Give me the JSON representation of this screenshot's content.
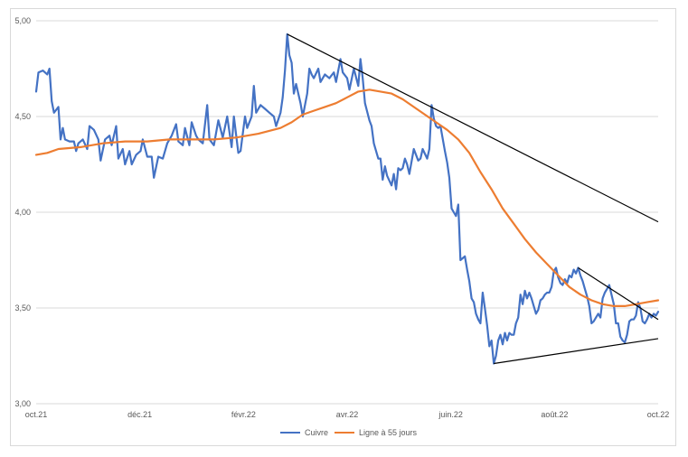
{
  "chart_data": {
    "type": "line",
    "title": "",
    "xlabel": "",
    "ylabel": "",
    "ylim": [
      3.0,
      5.0
    ],
    "y_ticks": [
      "5,00",
      "4,50",
      "4,00",
      "3,50",
      "3,00"
    ],
    "x_ticks": [
      "oct.21",
      "déc.21",
      "févr.22",
      "avr.22",
      "juin.22",
      "août.22",
      "oct.22"
    ],
    "grid": "horizontal",
    "legend_position": "bottom",
    "series": [
      {
        "name": "Cuivre",
        "color": "#4472c4",
        "points": [
          [
            0,
            4.63
          ],
          [
            1,
            4.73
          ],
          [
            3,
            4.74
          ],
          [
            5,
            4.72
          ],
          [
            6,
            4.75
          ],
          [
            7,
            4.58
          ],
          [
            8,
            4.52
          ],
          [
            10,
            4.55
          ],
          [
            11,
            4.38
          ],
          [
            12,
            4.44
          ],
          [
            13,
            4.38
          ],
          [
            15,
            4.37
          ],
          [
            17,
            4.37
          ],
          [
            18,
            4.32
          ],
          [
            19,
            4.36
          ],
          [
            21,
            4.38
          ],
          [
            23,
            4.33
          ],
          [
            24,
            4.45
          ],
          [
            26,
            4.43
          ],
          [
            28,
            4.38
          ],
          [
            29,
            4.27
          ],
          [
            31,
            4.38
          ],
          [
            33,
            4.4
          ],
          [
            34,
            4.35
          ],
          [
            36,
            4.45
          ],
          [
            37,
            4.28
          ],
          [
            39,
            4.33
          ],
          [
            40,
            4.25
          ],
          [
            42,
            4.32
          ],
          [
            43,
            4.25
          ],
          [
            45,
            4.3
          ],
          [
            47,
            4.32
          ],
          [
            48,
            4.38
          ],
          [
            50,
            4.29
          ],
          [
            52,
            4.29
          ],
          [
            53,
            4.18
          ],
          [
            55,
            4.29
          ],
          [
            57,
            4.28
          ],
          [
            59,
            4.36
          ],
          [
            61,
            4.4
          ],
          [
            63,
            4.46
          ],
          [
            64,
            4.37
          ],
          [
            66,
            4.35
          ],
          [
            67,
            4.44
          ],
          [
            69,
            4.35
          ],
          [
            70,
            4.47
          ],
          [
            72,
            4.4
          ],
          [
            73,
            4.38
          ],
          [
            75,
            4.36
          ],
          [
            77,
            4.56
          ],
          [
            78,
            4.38
          ],
          [
            80,
            4.35
          ],
          [
            82,
            4.48
          ],
          [
            84,
            4.39
          ],
          [
            86,
            4.5
          ],
          [
            88,
            4.34
          ],
          [
            89,
            4.5
          ],
          [
            91,
            4.31
          ],
          [
            92,
            4.32
          ],
          [
            94,
            4.5
          ],
          [
            95,
            4.44
          ],
          [
            97,
            4.5
          ],
          [
            98,
            4.66
          ],
          [
            99,
            4.52
          ],
          [
            101,
            4.56
          ],
          [
            103,
            4.54
          ],
          [
            105,
            4.52
          ],
          [
            107,
            4.5
          ],
          [
            108,
            4.45
          ],
          [
            110,
            4.52
          ],
          [
            111,
            4.6
          ],
          [
            112,
            4.74
          ],
          [
            113,
            4.93
          ],
          [
            114,
            4.82
          ],
          [
            115,
            4.78
          ],
          [
            116,
            4.62
          ],
          [
            117,
            4.67
          ],
          [
            119,
            4.57
          ],
          [
            120,
            4.5
          ],
          [
            122,
            4.62
          ],
          [
            123,
            4.75
          ],
          [
            124,
            4.72
          ],
          [
            125,
            4.7
          ],
          [
            127,
            4.75
          ],
          [
            128,
            4.68
          ],
          [
            130,
            4.72
          ],
          [
            132,
            4.7
          ],
          [
            134,
            4.73
          ],
          [
            135,
            4.68
          ],
          [
            137,
            4.8
          ],
          [
            138,
            4.73
          ],
          [
            140,
            4.7
          ],
          [
            141,
            4.64
          ],
          [
            143,
            4.75
          ],
          [
            145,
            4.66
          ],
          [
            146,
            4.8
          ],
          [
            147,
            4.7
          ],
          [
            148,
            4.57
          ],
          [
            150,
            4.48
          ],
          [
            151,
            4.45
          ],
          [
            152,
            4.36
          ],
          [
            154,
            4.28
          ],
          [
            155,
            4.28
          ],
          [
            156,
            4.17
          ],
          [
            157,
            4.24
          ],
          [
            158,
            4.19
          ],
          [
            160,
            4.14
          ],
          [
            161,
            4.2
          ],
          [
            162,
            4.12
          ],
          [
            163,
            4.23
          ],
          [
            164,
            4.22
          ],
          [
            165,
            4.23
          ],
          [
            166,
            4.28
          ],
          [
            167,
            4.25
          ],
          [
            168,
            4.2
          ],
          [
            170,
            4.33
          ],
          [
            172,
            4.27
          ],
          [
            173,
            4.28
          ],
          [
            174,
            4.33
          ],
          [
            176,
            4.28
          ],
          [
            177,
            4.33
          ],
          [
            178,
            4.56
          ],
          [
            179,
            4.49
          ],
          [
            180,
            4.45
          ],
          [
            181,
            4.44
          ],
          [
            182,
            4.45
          ],
          [
            184,
            4.32
          ],
          [
            185,
            4.26
          ],
          [
            186,
            4.18
          ],
          [
            187,
            4.02
          ],
          [
            188,
            4.0
          ],
          [
            189,
            3.98
          ],
          [
            190,
            4.04
          ],
          [
            191,
            3.75
          ],
          [
            193,
            3.77
          ],
          [
            194,
            3.7
          ],
          [
            195,
            3.64
          ],
          [
            196,
            3.55
          ],
          [
            197,
            3.53
          ],
          [
            198,
            3.47
          ],
          [
            199,
            3.44
          ],
          [
            200,
            3.42
          ],
          [
            201,
            3.58
          ],
          [
            202,
            3.5
          ],
          [
            203,
            3.41
          ],
          [
            204,
            3.3
          ],
          [
            205,
            3.33
          ],
          [
            206,
            3.21
          ],
          [
            207,
            3.25
          ],
          [
            208,
            3.33
          ],
          [
            209,
            3.36
          ],
          [
            210,
            3.31
          ],
          [
            211,
            3.37
          ],
          [
            212,
            3.33
          ],
          [
            213,
            3.37
          ],
          [
            214,
            3.36
          ],
          [
            215,
            3.36
          ],
          [
            216,
            3.42
          ],
          [
            217,
            3.45
          ],
          [
            218,
            3.57
          ],
          [
            219,
            3.52
          ],
          [
            220,
            3.59
          ],
          [
            221,
            3.55
          ],
          [
            222,
            3.58
          ],
          [
            223,
            3.55
          ],
          [
            224,
            3.51
          ],
          [
            225,
            3.47
          ],
          [
            226,
            3.49
          ],
          [
            227,
            3.54
          ],
          [
            228,
            3.55
          ],
          [
            229,
            3.57
          ],
          [
            230,
            3.58
          ],
          [
            231,
            3.58
          ],
          [
            232,
            3.61
          ],
          [
            233,
            3.69
          ],
          [
            234,
            3.71
          ],
          [
            235,
            3.66
          ],
          [
            236,
            3.63
          ],
          [
            237,
            3.62
          ],
          [
            238,
            3.65
          ],
          [
            239,
            3.63
          ],
          [
            240,
            3.67
          ],
          [
            241,
            3.66
          ],
          [
            242,
            3.7
          ],
          [
            243,
            3.68
          ],
          [
            244,
            3.71
          ],
          [
            245,
            3.67
          ],
          [
            246,
            3.64
          ],
          [
            247,
            3.6
          ],
          [
            248,
            3.56
          ],
          [
            249,
            3.51
          ],
          [
            250,
            3.42
          ],
          [
            251,
            3.43
          ],
          [
            252,
            3.45
          ],
          [
            253,
            3.47
          ],
          [
            254,
            3.45
          ],
          [
            255,
            3.55
          ],
          [
            256,
            3.58
          ],
          [
            257,
            3.6
          ],
          [
            258,
            3.62
          ],
          [
            259,
            3.57
          ],
          [
            260,
            3.52
          ],
          [
            261,
            3.42
          ],
          [
            262,
            3.42
          ],
          [
            263,
            3.35
          ],
          [
            264,
            3.33
          ],
          [
            265,
            3.32
          ],
          [
            266,
            3.36
          ],
          [
            267,
            3.43
          ],
          [
            268,
            3.44
          ],
          [
            269,
            3.44
          ],
          [
            270,
            3.46
          ],
          [
            271,
            3.53
          ],
          [
            272,
            3.5
          ],
          [
            273,
            3.43
          ],
          [
            274,
            3.42
          ],
          [
            275,
            3.44
          ],
          [
            276,
            3.47
          ],
          [
            277,
            3.45
          ],
          [
            278,
            3.47
          ],
          [
            279,
            3.46
          ],
          [
            280,
            3.48
          ]
        ]
      },
      {
        "name": "Ligne à 55 jours",
        "color": "#ed7d31",
        "points": [
          [
            0,
            4.3
          ],
          [
            5,
            4.31
          ],
          [
            10,
            4.33
          ],
          [
            20,
            4.34
          ],
          [
            30,
            4.36
          ],
          [
            40,
            4.37
          ],
          [
            50,
            4.37
          ],
          [
            60,
            4.38
          ],
          [
            70,
            4.38
          ],
          [
            80,
            4.38
          ],
          [
            90,
            4.39
          ],
          [
            100,
            4.41
          ],
          [
            110,
            4.44
          ],
          [
            115,
            4.47
          ],
          [
            120,
            4.51
          ],
          [
            125,
            4.53
          ],
          [
            130,
            4.55
          ],
          [
            135,
            4.57
          ],
          [
            140,
            4.6
          ],
          [
            145,
            4.63
          ],
          [
            150,
            4.64
          ],
          [
            155,
            4.63
          ],
          [
            160,
            4.62
          ],
          [
            165,
            4.59
          ],
          [
            170,
            4.55
          ],
          [
            175,
            4.51
          ],
          [
            180,
            4.47
          ],
          [
            185,
            4.43
          ],
          [
            190,
            4.38
          ],
          [
            195,
            4.31
          ],
          [
            200,
            4.21
          ],
          [
            205,
            4.12
          ],
          [
            210,
            4.02
          ],
          [
            215,
            3.94
          ],
          [
            220,
            3.86
          ],
          [
            225,
            3.79
          ],
          [
            230,
            3.73
          ],
          [
            235,
            3.67
          ],
          [
            240,
            3.61
          ],
          [
            245,
            3.57
          ],
          [
            250,
            3.54
          ],
          [
            255,
            3.52
          ],
          [
            260,
            3.51
          ],
          [
            265,
            3.51
          ],
          [
            270,
            3.52
          ],
          [
            275,
            3.53
          ],
          [
            280,
            3.54
          ]
        ]
      }
    ],
    "trendlines": [
      {
        "points": [
          [
            113,
            4.93
          ],
          [
            280,
            3.95
          ]
        ],
        "color": "#000000"
      },
      {
        "points": [
          [
            244,
            3.71
          ],
          [
            280,
            3.44
          ]
        ],
        "color": "#000000"
      },
      {
        "points": [
          [
            206,
            3.21
          ],
          [
            280,
            3.34
          ]
        ],
        "color": "#000000"
      }
    ]
  }
}
